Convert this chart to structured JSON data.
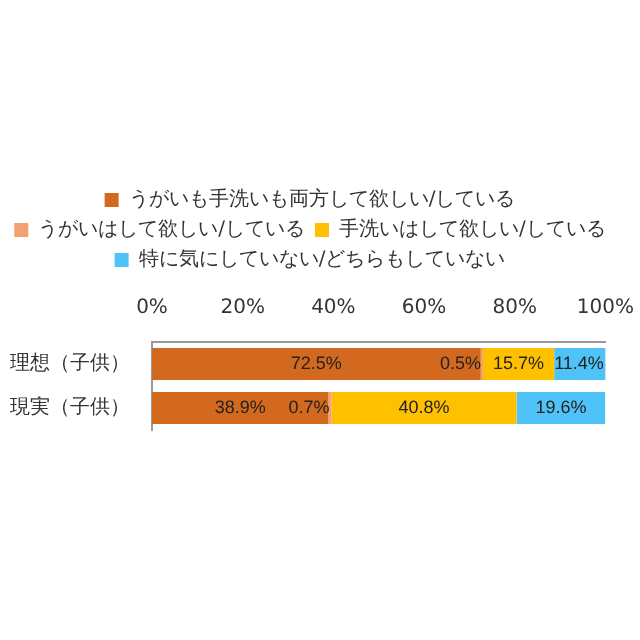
{
  "chart_data": {
    "type": "bar",
    "orientation": "horizontal",
    "stacked": true,
    "categories": [
      "理想（子供）",
      "現実（子供）"
    ],
    "series": [
      {
        "name": "うがいも手洗いも両方して欲しい/している",
        "color": "#d2691e",
        "values": [
          72.5,
          38.9
        ],
        "value_labels": [
          "72.5%",
          "38.9%"
        ]
      },
      {
        "name": "うがいはして欲しい/している",
        "color": "#f4a070",
        "values": [
          0.5,
          0.7
        ],
        "value_labels": [
          "0.5%",
          "0.7%"
        ]
      },
      {
        "name": "手洗いはして欲しい/している",
        "color": "#ffc000",
        "values": [
          15.7,
          40.8
        ],
        "value_labels": [
          "15.7%",
          "40.8%"
        ]
      },
      {
        "name": "特に気にしていない/どちらもしていない",
        "color": "#4fc3f7",
        "values": [
          11.4,
          19.6
        ],
        "value_labels": [
          "11.4%",
          "19.6%"
        ]
      }
    ],
    "xlim": [
      0,
      100
    ],
    "xticks": [
      {
        "value": 0,
        "label": "0%"
      },
      {
        "value": 20,
        "label": "20%"
      },
      {
        "value": 40,
        "label": "40%"
      },
      {
        "value": 60,
        "label": "60%"
      },
      {
        "value": 80,
        "label": "80%"
      },
      {
        "value": 100,
        "label": "100%"
      }
    ],
    "grid": false,
    "legend": "top"
  }
}
